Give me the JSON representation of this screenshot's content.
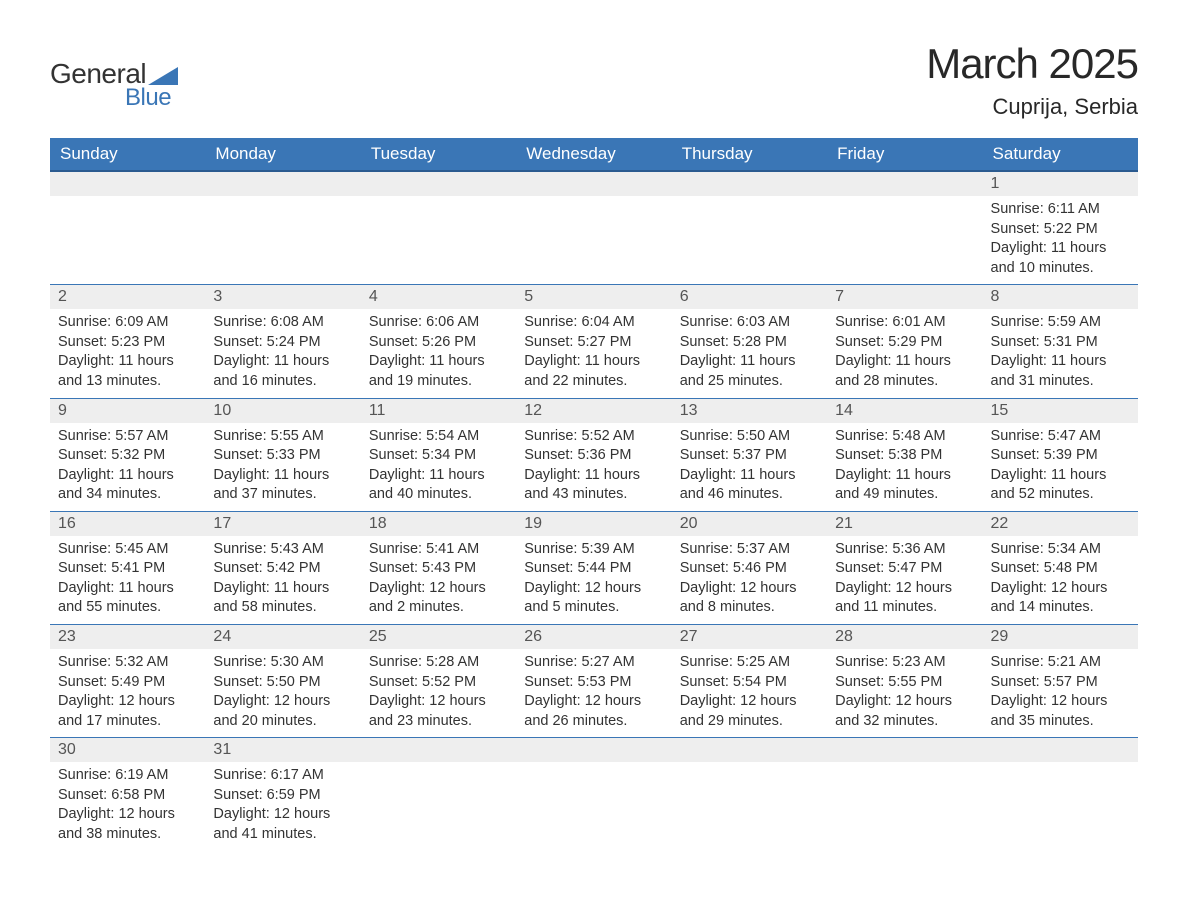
{
  "logo": {
    "text_general": "General",
    "text_blue": "Blue",
    "triangle_color": "#3a76b6"
  },
  "header": {
    "month_title": "March 2025",
    "location": "Cuprija, Serbia"
  },
  "columns": [
    "Sunday",
    "Monday",
    "Tuesday",
    "Wednesday",
    "Thursday",
    "Friday",
    "Saturday"
  ],
  "colors": {
    "header_bg": "#3a76b6",
    "header_text": "#ffffff",
    "daynum_bg": "#eeeeee",
    "row_border": "#3a76b6",
    "body_text": "#333333"
  },
  "typography": {
    "title_fontsize": 42,
    "location_fontsize": 22,
    "header_fontsize": 17,
    "daynum_fontsize": 16,
    "body_fontsize": 14.5,
    "font_family": "Arial"
  },
  "weeks": [
    [
      {
        "empty": true
      },
      {
        "empty": true
      },
      {
        "empty": true
      },
      {
        "empty": true
      },
      {
        "empty": true
      },
      {
        "empty": true
      },
      {
        "day": "1",
        "sunrise": "Sunrise: 6:11 AM",
        "sunset": "Sunset: 5:22 PM",
        "daylight1": "Daylight: 11 hours",
        "daylight2": "and 10 minutes."
      }
    ],
    [
      {
        "day": "2",
        "sunrise": "Sunrise: 6:09 AM",
        "sunset": "Sunset: 5:23 PM",
        "daylight1": "Daylight: 11 hours",
        "daylight2": "and 13 minutes."
      },
      {
        "day": "3",
        "sunrise": "Sunrise: 6:08 AM",
        "sunset": "Sunset: 5:24 PM",
        "daylight1": "Daylight: 11 hours",
        "daylight2": "and 16 minutes."
      },
      {
        "day": "4",
        "sunrise": "Sunrise: 6:06 AM",
        "sunset": "Sunset: 5:26 PM",
        "daylight1": "Daylight: 11 hours",
        "daylight2": "and 19 minutes."
      },
      {
        "day": "5",
        "sunrise": "Sunrise: 6:04 AM",
        "sunset": "Sunset: 5:27 PM",
        "daylight1": "Daylight: 11 hours",
        "daylight2": "and 22 minutes."
      },
      {
        "day": "6",
        "sunrise": "Sunrise: 6:03 AM",
        "sunset": "Sunset: 5:28 PM",
        "daylight1": "Daylight: 11 hours",
        "daylight2": "and 25 minutes."
      },
      {
        "day": "7",
        "sunrise": "Sunrise: 6:01 AM",
        "sunset": "Sunset: 5:29 PM",
        "daylight1": "Daylight: 11 hours",
        "daylight2": "and 28 minutes."
      },
      {
        "day": "8",
        "sunrise": "Sunrise: 5:59 AM",
        "sunset": "Sunset: 5:31 PM",
        "daylight1": "Daylight: 11 hours",
        "daylight2": "and 31 minutes."
      }
    ],
    [
      {
        "day": "9",
        "sunrise": "Sunrise: 5:57 AM",
        "sunset": "Sunset: 5:32 PM",
        "daylight1": "Daylight: 11 hours",
        "daylight2": "and 34 minutes."
      },
      {
        "day": "10",
        "sunrise": "Sunrise: 5:55 AM",
        "sunset": "Sunset: 5:33 PM",
        "daylight1": "Daylight: 11 hours",
        "daylight2": "and 37 minutes."
      },
      {
        "day": "11",
        "sunrise": "Sunrise: 5:54 AM",
        "sunset": "Sunset: 5:34 PM",
        "daylight1": "Daylight: 11 hours",
        "daylight2": "and 40 minutes."
      },
      {
        "day": "12",
        "sunrise": "Sunrise: 5:52 AM",
        "sunset": "Sunset: 5:36 PM",
        "daylight1": "Daylight: 11 hours",
        "daylight2": "and 43 minutes."
      },
      {
        "day": "13",
        "sunrise": "Sunrise: 5:50 AM",
        "sunset": "Sunset: 5:37 PM",
        "daylight1": "Daylight: 11 hours",
        "daylight2": "and 46 minutes."
      },
      {
        "day": "14",
        "sunrise": "Sunrise: 5:48 AM",
        "sunset": "Sunset: 5:38 PM",
        "daylight1": "Daylight: 11 hours",
        "daylight2": "and 49 minutes."
      },
      {
        "day": "15",
        "sunrise": "Sunrise: 5:47 AM",
        "sunset": "Sunset: 5:39 PM",
        "daylight1": "Daylight: 11 hours",
        "daylight2": "and 52 minutes."
      }
    ],
    [
      {
        "day": "16",
        "sunrise": "Sunrise: 5:45 AM",
        "sunset": "Sunset: 5:41 PM",
        "daylight1": "Daylight: 11 hours",
        "daylight2": "and 55 minutes."
      },
      {
        "day": "17",
        "sunrise": "Sunrise: 5:43 AM",
        "sunset": "Sunset: 5:42 PM",
        "daylight1": "Daylight: 11 hours",
        "daylight2": "and 58 minutes."
      },
      {
        "day": "18",
        "sunrise": "Sunrise: 5:41 AM",
        "sunset": "Sunset: 5:43 PM",
        "daylight1": "Daylight: 12 hours",
        "daylight2": "and 2 minutes."
      },
      {
        "day": "19",
        "sunrise": "Sunrise: 5:39 AM",
        "sunset": "Sunset: 5:44 PM",
        "daylight1": "Daylight: 12 hours",
        "daylight2": "and 5 minutes."
      },
      {
        "day": "20",
        "sunrise": "Sunrise: 5:37 AM",
        "sunset": "Sunset: 5:46 PM",
        "daylight1": "Daylight: 12 hours",
        "daylight2": "and 8 minutes."
      },
      {
        "day": "21",
        "sunrise": "Sunrise: 5:36 AM",
        "sunset": "Sunset: 5:47 PM",
        "daylight1": "Daylight: 12 hours",
        "daylight2": "and 11 minutes."
      },
      {
        "day": "22",
        "sunrise": "Sunrise: 5:34 AM",
        "sunset": "Sunset: 5:48 PM",
        "daylight1": "Daylight: 12 hours",
        "daylight2": "and 14 minutes."
      }
    ],
    [
      {
        "day": "23",
        "sunrise": "Sunrise: 5:32 AM",
        "sunset": "Sunset: 5:49 PM",
        "daylight1": "Daylight: 12 hours",
        "daylight2": "and 17 minutes."
      },
      {
        "day": "24",
        "sunrise": "Sunrise: 5:30 AM",
        "sunset": "Sunset: 5:50 PM",
        "daylight1": "Daylight: 12 hours",
        "daylight2": "and 20 minutes."
      },
      {
        "day": "25",
        "sunrise": "Sunrise: 5:28 AM",
        "sunset": "Sunset: 5:52 PM",
        "daylight1": "Daylight: 12 hours",
        "daylight2": "and 23 minutes."
      },
      {
        "day": "26",
        "sunrise": "Sunrise: 5:27 AM",
        "sunset": "Sunset: 5:53 PM",
        "daylight1": "Daylight: 12 hours",
        "daylight2": "and 26 minutes."
      },
      {
        "day": "27",
        "sunrise": "Sunrise: 5:25 AM",
        "sunset": "Sunset: 5:54 PM",
        "daylight1": "Daylight: 12 hours",
        "daylight2": "and 29 minutes."
      },
      {
        "day": "28",
        "sunrise": "Sunrise: 5:23 AM",
        "sunset": "Sunset: 5:55 PM",
        "daylight1": "Daylight: 12 hours",
        "daylight2": "and 32 minutes."
      },
      {
        "day": "29",
        "sunrise": "Sunrise: 5:21 AM",
        "sunset": "Sunset: 5:57 PM",
        "daylight1": "Daylight: 12 hours",
        "daylight2": "and 35 minutes."
      }
    ],
    [
      {
        "day": "30",
        "sunrise": "Sunrise: 6:19 AM",
        "sunset": "Sunset: 6:58 PM",
        "daylight1": "Daylight: 12 hours",
        "daylight2": "and 38 minutes."
      },
      {
        "day": "31",
        "sunrise": "Sunrise: 6:17 AM",
        "sunset": "Sunset: 6:59 PM",
        "daylight1": "Daylight: 12 hours",
        "daylight2": "and 41 minutes."
      },
      {
        "empty": true
      },
      {
        "empty": true
      },
      {
        "empty": true
      },
      {
        "empty": true
      },
      {
        "empty": true
      }
    ]
  ]
}
